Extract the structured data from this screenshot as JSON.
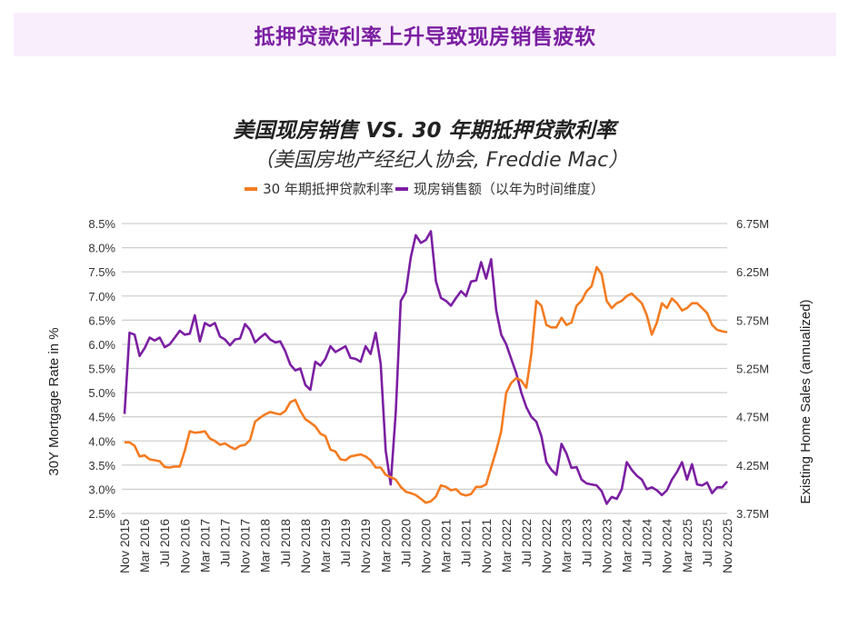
{
  "banner": {
    "title": "抵押贷款利率上升导致现房销售疲软"
  },
  "chart_data": {
    "type": "line",
    "title": "美国现房销售 VS. 30 年期抵押贷款利率",
    "subtitle": "（美国房地产经纪人协会, Freddie Mac）",
    "legend_position": "top-center",
    "grid": true,
    "x_start": "Nov 2015",
    "x_end": "Nov 2025",
    "x_tick_labels": [
      "Nov 2015",
      "Mar 2016",
      "Jul 2016",
      "Nov 2016",
      "Mar 2017",
      "Jul 2017",
      "Nov 2017",
      "Mar 2018",
      "Jul 2018",
      "Nov 2018",
      "Mar 2019",
      "Jul 2019",
      "Nov 2019",
      "Mar 2020",
      "Jul 2020",
      "Nov 2020",
      "Mar 2021",
      "Jul 2021",
      "Nov 2021",
      "Mar 2022",
      "Jul 2022",
      "Nov 2022",
      "Mar 2023",
      "Jul 2023",
      "Nov 2023",
      "Mar 2024",
      "Jul 2024",
      "Nov 2024",
      "Mar 2025",
      "Jul 2025",
      "Nov 2025"
    ],
    "ylabel_left": "30Y Mortgage Rate in %",
    "ylabel_right": "Existing Home Sales (annualized)",
    "ylim_left": [
      2.5,
      8.5
    ],
    "yticks_left": [
      "2.5%",
      "3.0%",
      "3.5%",
      "4.0%",
      "4.5%",
      "5.0%",
      "5.5%",
      "6.0%",
      "6.5%",
      "7.0%",
      "7.5%",
      "8.0%",
      "8.5%"
    ],
    "ylim_right": [
      3.75,
      6.75
    ],
    "yticks_right": [
      "3.75M",
      "4.25M",
      "4.75M",
      "5.25M",
      "5.75M",
      "6.25M",
      "6.75M"
    ],
    "series": [
      {
        "name": "30 年期抵押贷款利率",
        "axis": "left",
        "color": "#f47b20",
        "months_since_start": [
          0,
          1,
          2,
          3,
          4,
          5,
          6,
          7,
          8,
          9,
          10,
          11,
          12,
          13,
          14,
          15,
          16,
          17,
          18,
          19,
          20,
          21,
          22,
          23,
          24,
          25,
          26,
          27,
          28,
          29,
          30,
          31,
          32,
          33,
          34,
          35,
          36,
          37,
          38,
          39,
          40,
          41,
          42,
          43,
          44,
          45,
          46,
          47,
          48,
          49,
          50,
          51,
          52,
          53,
          54,
          55,
          56,
          57,
          58,
          59,
          60,
          61,
          62,
          63,
          64,
          65,
          66,
          67,
          68,
          69,
          70,
          71,
          72,
          73,
          74,
          75,
          76,
          77,
          78,
          79,
          80,
          81,
          82,
          83,
          84,
          85,
          86,
          87,
          88,
          89,
          90,
          91,
          92,
          93,
          94,
          95,
          96,
          97,
          98,
          99,
          100,
          101,
          102,
          103,
          104,
          105,
          106,
          107,
          108,
          109,
          110,
          111,
          112,
          113,
          114,
          115,
          116,
          117,
          118,
          119,
          120
        ],
        "values": [
          3.97,
          3.97,
          3.9,
          3.68,
          3.7,
          3.62,
          3.6,
          3.58,
          3.46,
          3.45,
          3.47,
          3.47,
          3.8,
          4.2,
          4.17,
          4.18,
          4.2,
          4.05,
          4.0,
          3.92,
          3.95,
          3.88,
          3.83,
          3.9,
          3.92,
          4.02,
          4.4,
          4.48,
          4.55,
          4.6,
          4.57,
          4.55,
          4.62,
          4.8,
          4.85,
          4.62,
          4.45,
          4.38,
          4.3,
          4.15,
          4.1,
          3.82,
          3.78,
          3.62,
          3.6,
          3.68,
          3.7,
          3.72,
          3.68,
          3.6,
          3.45,
          3.45,
          3.3,
          3.25,
          3.2,
          3.05,
          2.95,
          2.92,
          2.88,
          2.8,
          2.72,
          2.75,
          2.85,
          3.08,
          3.05,
          2.98,
          3.0,
          2.9,
          2.87,
          2.9,
          3.05,
          3.05,
          3.1,
          3.45,
          3.8,
          4.2,
          5.0,
          5.2,
          5.3,
          5.25,
          5.1,
          5.8,
          6.9,
          6.8,
          6.4,
          6.35,
          6.35,
          6.55,
          6.4,
          6.45,
          6.8,
          6.9,
          7.1,
          7.2,
          7.6,
          7.45,
          6.9,
          6.75,
          6.85,
          6.9,
          7.0,
          7.05,
          6.95,
          6.85,
          6.6,
          6.2,
          6.45,
          6.85,
          6.75,
          6.95,
          6.85,
          6.7,
          6.75,
          6.85,
          6.85,
          6.75,
          6.65,
          6.4,
          6.3,
          6.27,
          6.25
        ]
      },
      {
        "name": "现房销售额（以年为时间维度）",
        "axis": "right",
        "color": "#7b1fa2",
        "months_since_start": [
          0,
          1,
          2,
          3,
          4,
          5,
          6,
          7,
          8,
          9,
          10,
          11,
          12,
          13,
          14,
          15,
          16,
          17,
          18,
          19,
          20,
          21,
          22,
          23,
          24,
          25,
          26,
          27,
          28,
          29,
          30,
          31,
          32,
          33,
          34,
          35,
          36,
          37,
          38,
          39,
          40,
          41,
          42,
          43,
          44,
          45,
          46,
          47,
          48,
          49,
          50,
          51,
          52,
          53,
          54,
          55,
          56,
          57,
          58,
          59,
          60,
          61,
          62,
          63,
          64,
          65,
          66,
          67,
          68,
          69,
          70,
          71,
          72,
          73,
          74,
          75,
          76,
          77,
          78,
          79,
          80,
          81,
          82,
          83,
          84,
          85,
          86,
          87,
          88,
          89,
          90,
          91,
          92,
          93,
          94,
          95,
          96,
          97,
          98,
          99,
          100,
          101,
          102,
          103,
          104,
          105,
          106,
          107,
          108,
          109,
          110,
          111,
          112,
          113,
          114,
          115,
          116,
          117,
          118,
          119,
          120
        ],
        "values": [
          4.78,
          5.62,
          5.6,
          5.38,
          5.46,
          5.57,
          5.54,
          5.57,
          5.47,
          5.5,
          5.57,
          5.64,
          5.6,
          5.61,
          5.8,
          5.53,
          5.72,
          5.69,
          5.72,
          5.58,
          5.55,
          5.49,
          5.55,
          5.56,
          5.71,
          5.65,
          5.52,
          5.57,
          5.61,
          5.55,
          5.52,
          5.53,
          5.43,
          5.29,
          5.23,
          5.25,
          5.08,
          5.03,
          5.32,
          5.28,
          5.35,
          5.48,
          5.42,
          5.45,
          5.48,
          5.36,
          5.35,
          5.32,
          5.48,
          5.4,
          5.62,
          5.3,
          4.4,
          4.05,
          4.8,
          5.95,
          6.04,
          6.4,
          6.63,
          6.55,
          6.58,
          6.67,
          6.15,
          5.98,
          5.95,
          5.9,
          5.98,
          6.05,
          6.0,
          6.15,
          6.16,
          6.35,
          6.18,
          6.38,
          5.85,
          5.6,
          5.5,
          5.35,
          5.2,
          5.0,
          4.85,
          4.75,
          4.7,
          4.55,
          4.28,
          4.2,
          4.15,
          4.47,
          4.37,
          4.22,
          4.23,
          4.1,
          4.06,
          4.05,
          4.04,
          3.98,
          3.85,
          3.92,
          3.9,
          4.0,
          4.28,
          4.2,
          4.14,
          4.1,
          4.0,
          4.02,
          3.99,
          3.94,
          3.99,
          4.1,
          4.18,
          4.28,
          4.1,
          4.26,
          4.05,
          4.04,
          4.07,
          3.96,
          4.02,
          4.02,
          4.08
        ]
      }
    ]
  }
}
